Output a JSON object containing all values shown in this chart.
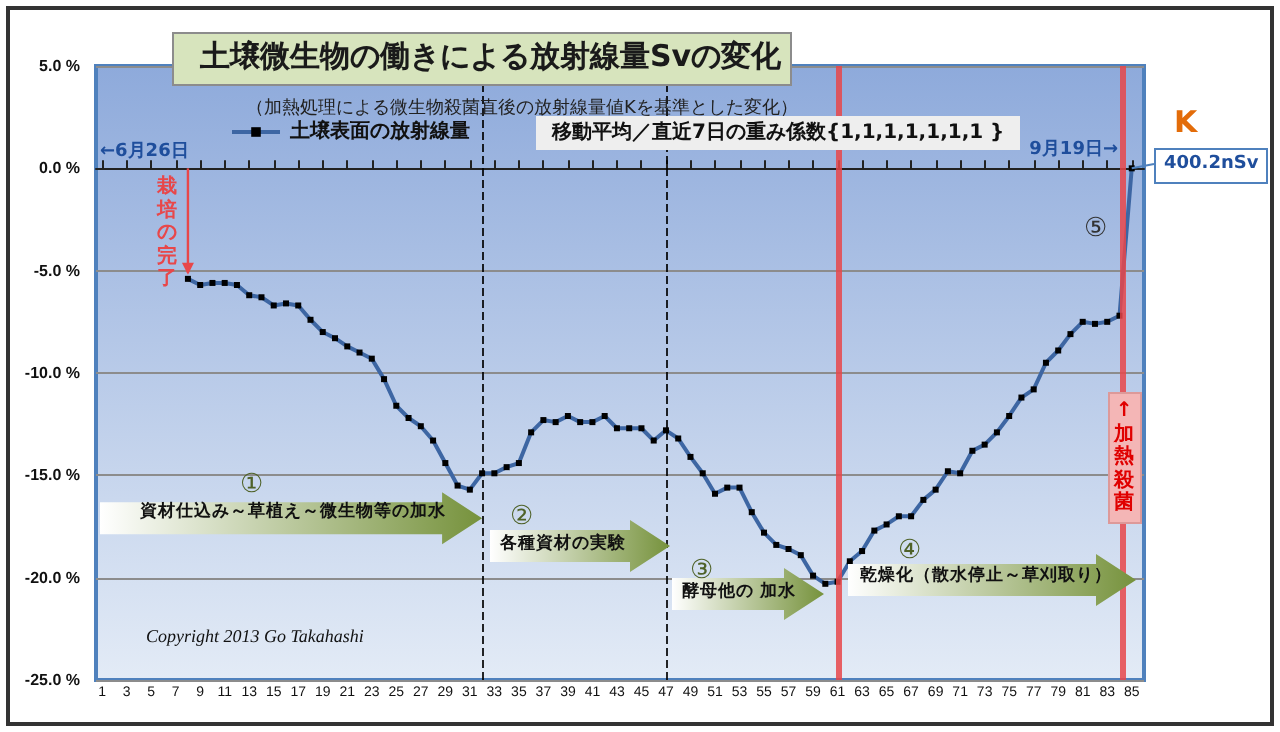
{
  "chart_data": {
    "type": "line",
    "title": "土壌微生物の働きによる放射線量Svの変化",
    "subtitle": "（加熱処理による微生物殺菌直後の放射線量値Kを基準とした変化）",
    "x": [
      8,
      9,
      10,
      11,
      12,
      13,
      14,
      15,
      16,
      17,
      18,
      19,
      20,
      21,
      22,
      23,
      24,
      25,
      26,
      27,
      28,
      29,
      30,
      31,
      32,
      33,
      34,
      35,
      36,
      37,
      38,
      39,
      40,
      41,
      42,
      43,
      44,
      45,
      46,
      47,
      48,
      49,
      50,
      51,
      52,
      53,
      54,
      55,
      56,
      57,
      58,
      59,
      60,
      61,
      62,
      63,
      64,
      65,
      66,
      67,
      68,
      69,
      70,
      71,
      72,
      73,
      74,
      75,
      76,
      77,
      78,
      79,
      80,
      81,
      82,
      83,
      84,
      85
    ],
    "series": [
      {
        "name": "土壌表面の放射線量",
        "color": "#3d66a3",
        "values": [
          -5.4,
          -5.7,
          -5.6,
          -5.6,
          -5.7,
          -6.2,
          -6.3,
          -6.7,
          -6.6,
          -6.7,
          -7.4,
          -8.0,
          -8.3,
          -8.7,
          -9.0,
          -9.3,
          -10.3,
          -11.6,
          -12.2,
          -12.6,
          -13.3,
          -14.4,
          -15.5,
          -15.7,
          -14.9,
          -14.9,
          -14.6,
          -14.4,
          -12.9,
          -12.3,
          -12.4,
          -12.1,
          -12.4,
          -12.4,
          -12.1,
          -12.7,
          -12.7,
          -12.7,
          -13.3,
          -12.8,
          -13.2,
          -14.1,
          -14.9,
          -15.9,
          -15.6,
          -15.6,
          -16.8,
          -17.8,
          -18.4,
          -18.6,
          -18.9,
          -19.9,
          -20.3,
          -20.2,
          -19.2,
          -18.7,
          -17.7,
          -17.4,
          -17.0,
          -17.0,
          -16.2,
          -15.7,
          -14.8,
          -14.9,
          -13.8,
          -13.5,
          -12.9,
          -12.1,
          -11.2,
          -10.8,
          -9.5,
          -8.9,
          -8.1,
          -7.5,
          -7.6,
          -7.5,
          -7.2,
          0
        ]
      }
    ],
    "xlim": [
      0.5,
      86
    ],
    "xticks": [
      1,
      3,
      5,
      7,
      9,
      11,
      13,
      15,
      17,
      19,
      21,
      23,
      25,
      27,
      29,
      31,
      33,
      35,
      37,
      39,
      41,
      43,
      45,
      47,
      49,
      51,
      53,
      55,
      57,
      59,
      61,
      63,
      65,
      67,
      69,
      71,
      73,
      75,
      77,
      79,
      81,
      83,
      85
    ],
    "ylim": [
      -25,
      5
    ],
    "yticks": [
      {
        "value": -25,
        "label": "-25.0 %"
      },
      {
        "value": -20,
        "label": "-20.0 %"
      },
      {
        "value": -15,
        "label": "-15.0 %"
      },
      {
        "value": -10,
        "label": "-10.0 %"
      },
      {
        "value": -5,
        "label": "-5.0 %"
      },
      {
        "value": 0,
        "label": "0.0 %"
      },
      {
        "value": 5,
        "label": "5.0 %"
      }
    ],
    "grid": "y",
    "legend": "top left",
    "marker": "square",
    "line_style": "solid",
    "ref_lines": [
      {
        "axis": "x",
        "value": 32,
        "color": "#000000",
        "line_style": "dashed"
      },
      {
        "axis": "x",
        "value": 47,
        "color": "#000000",
        "line_style": "dashed"
      },
      {
        "axis": "x",
        "value": 61,
        "color": "#e8474a",
        "line_style": "solid"
      },
      {
        "axis": "x",
        "value": 84.3,
        "color": "#e8474a",
        "line_style": "solid",
        "label": "↑加熱殺菌"
      }
    ],
    "annotations": [
      "←6月26日",
      "9月19日→",
      "K",
      {
        "text": "400.2nSv",
        "x": 85,
        "y": 0
      },
      "移動平均／直近7日の重み係数{1,1,1,1,1,1,1 }",
      {
        "text": "栽培の完了",
        "x": 8,
        "y": -5.4
      },
      "①",
      {
        "text": "資材仕込み～草植え～微生物等の加水",
        "x": 32,
        "y": -17.1
      },
      "②",
      "各種資材の実験",
      "③",
      "酵母他の 加水",
      "④",
      "乾燥化（散水停止～草刈取り）",
      "⑤",
      "Copyright 2013 Go Takahashi"
    ]
  }
}
